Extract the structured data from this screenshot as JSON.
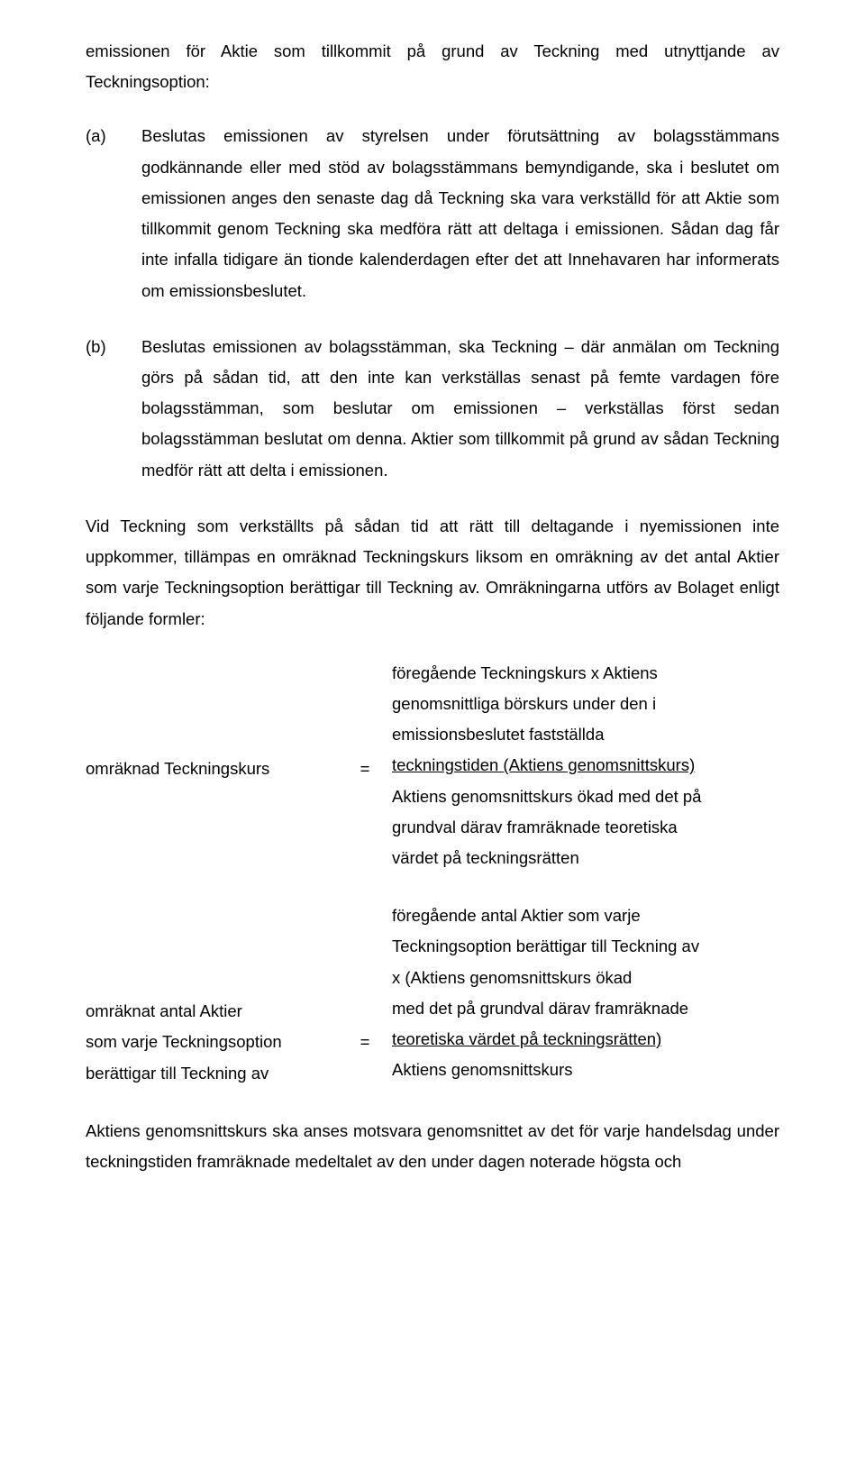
{
  "intro": "emissionen för Aktie som tillkommit på grund av Teckning med utnyttjande av Teckningsoption:",
  "items": {
    "a": {
      "marker": "(a)",
      "text": "Beslutas emissionen av styrelsen under förutsättning av bolagsstämmans godkännande eller med stöd av bolagsstämmans bemyndigande, ska i beslutet om emissionen anges den senaste dag då Teckning ska vara verkställd för att Aktie som tillkommit genom Teckning ska medföra rätt att deltaga i emissionen. Sådan dag får inte infalla tidigare än tionde kalenderdagen efter det att Innehavaren har informerats om emissionsbeslutet."
    },
    "b": {
      "marker": "(b)",
      "text": "Beslutas emissionen av bolagsstämman, ska Teckning – där anmälan om Teckning görs på sådan tid, att den inte kan verkställas senast på femte vardagen före bolagsstämman, som beslutar om emissionen – verkställas först sedan bolagsstämman beslutat om denna. Aktier som tillkommit på grund av sådan Teckning medför rätt att delta i emissionen."
    }
  },
  "para2": "Vid Teckning som verkställts på sådan tid att rätt till deltagande i nyemissionen inte uppkommer, tillämpas en omräknad Teckningskurs liksom en omräkning av det antal Aktier som varje Teckningsoption berättigar till Teckning av. Omräkningarna utförs av Bolaget enligt följande formler:",
  "formula1": {
    "left": "omräknad Teckningskurs",
    "eq": "=",
    "r1": "föregående Teckningskurs x Aktiens",
    "r2": "genomsnittliga börskurs under den i",
    "r3": "emissionsbeslutet fastställda",
    "r4": "teckningstiden (Aktiens genomsnittskurs)",
    "r5": "Aktiens genomsnittskurs ökad med det på",
    "r6": "grundval därav framräknade teoretiska",
    "r7": "värdet på teckningsrätten"
  },
  "formula2": {
    "l1": "omräknat antal Aktier",
    "l2": "som varje Teckningsoption",
    "l3": "berättigar till Teckning av",
    "eq": "=",
    "r1": "föregående antal Aktier som varje",
    "r2": "Teckningsoption berättigar till Teckning av",
    "r3": "x (Aktiens genomsnittskurs ökad",
    "r4": "med det på grundval därav framräknade",
    "r5": "teoretiska värdet på teckningsrätten)",
    "r6": "Aktiens genomsnittskurs"
  },
  "footer": "Aktiens genomsnittskurs ska anses motsvara genomsnittet av det för varje handelsdag under teckningstiden framräknade medeltalet av den under dagen noterade högsta och"
}
